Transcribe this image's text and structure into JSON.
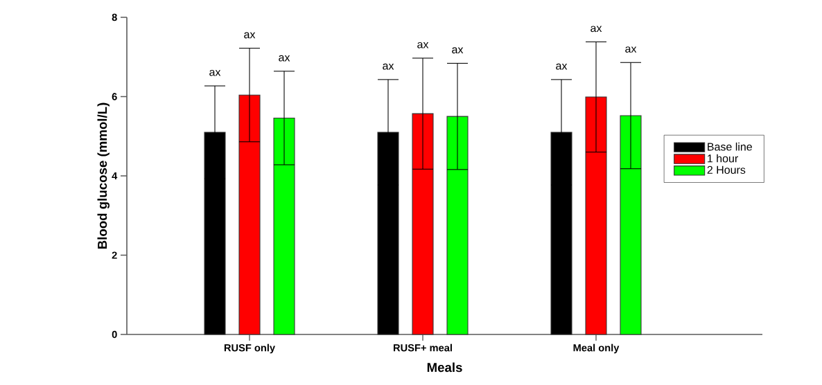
{
  "chart_data": {
    "type": "bar",
    "xlabel": "Meals",
    "ylabel": "Blood glucose (mmol/L)",
    "categories": [
      "RUSF only",
      "RUSF+ meal",
      "Meal only"
    ],
    "series": [
      {
        "name": "Base line",
        "color": "#000000",
        "values": [
          5.1,
          5.1,
          5.1
        ],
        "errors": [
          1.17,
          1.33,
          1.33
        ]
      },
      {
        "name": "1 hour",
        "color": "#ff0000",
        "values": [
          6.04,
          5.57,
          5.99
        ],
        "errors": [
          1.18,
          1.4,
          1.39
        ]
      },
      {
        "name": "2 Hours",
        "color": "#00ff00",
        "values": [
          5.46,
          5.5,
          5.52
        ],
        "errors": [
          1.18,
          1.34,
          1.34
        ]
      }
    ],
    "annotations": [
      "ax",
      "ax",
      "ax",
      "ax",
      "ax",
      "ax",
      "ax",
      "ax",
      "ax"
    ],
    "ylim": [
      0,
      8
    ],
    "yticks": [
      0,
      2,
      4,
      6,
      8
    ],
    "grid": false,
    "legend": "right"
  }
}
